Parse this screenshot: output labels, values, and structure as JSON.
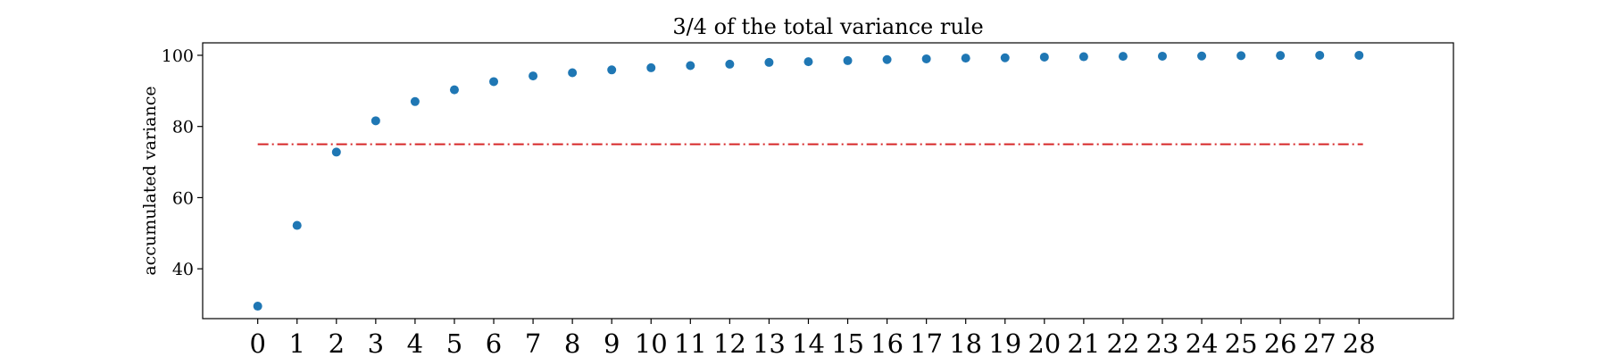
{
  "chart_data": {
    "type": "scatter",
    "title": "3/4 of the total variance rule",
    "xlabel": "",
    "ylabel": "accumulated variance",
    "x": [
      0,
      1,
      2,
      3,
      4,
      5,
      6,
      7,
      8,
      9,
      10,
      11,
      12,
      13,
      14,
      15,
      16,
      17,
      18,
      19,
      20,
      21,
      22,
      23,
      24,
      25,
      26,
      27,
      28
    ],
    "y": [
      29.5,
      52.2,
      72.8,
      81.6,
      87.0,
      90.3,
      92.6,
      94.2,
      95.1,
      95.9,
      96.5,
      97.1,
      97.5,
      98.0,
      98.2,
      98.5,
      98.8,
      99.0,
      99.2,
      99.3,
      99.5,
      99.6,
      99.7,
      99.75,
      99.8,
      99.9,
      99.95,
      100.0,
      100.0
    ],
    "xticks": [
      "0",
      "1",
      "2",
      "3",
      "4",
      "5",
      "6",
      "7",
      "8",
      "9",
      "10",
      "11",
      "12",
      "13",
      "14",
      "15",
      "16",
      "17",
      "18",
      "19",
      "20",
      "21",
      "22",
      "23",
      "24",
      "25",
      "26",
      "27",
      "28"
    ],
    "yticks": [
      "40",
      "60",
      "80",
      "100"
    ],
    "xlim": [
      -1.4,
      30.4
    ],
    "ylim": [
      26.0,
      103.5
    ],
    "point_color": "#1f77b4",
    "threshold": {
      "value": 75,
      "x_range": [
        0,
        28.1
      ],
      "color": "#d62728",
      "style": "dashdot"
    },
    "grid": false,
    "legend": "none"
  }
}
